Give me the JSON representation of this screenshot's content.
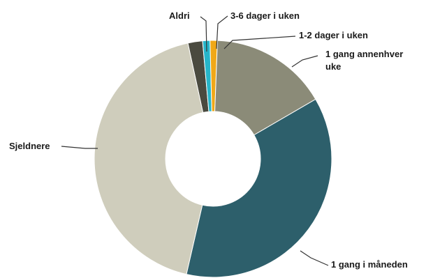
{
  "chart_data": {
    "type": "pie",
    "variant": "donut",
    "legend": "none",
    "slices": [
      {
        "label": "Aldri",
        "value": 2,
        "color": "#4a4a3f"
      },
      {
        "label": "3-6 dager i uken",
        "value": 1,
        "color": "#27b5c9"
      },
      {
        "label": "1-2 dager i uken",
        "value": 1,
        "color": "#f0a818"
      },
      {
        "label": "1 gang annenhver uke",
        "value": 16,
        "color": "#8b8b78"
      },
      {
        "label": "1 gang i måneden",
        "value": 37,
        "color": "#2d5f6b"
      },
      {
        "label": "Sjeldnere",
        "value": 43,
        "color": "#cfcdbc"
      }
    ]
  }
}
